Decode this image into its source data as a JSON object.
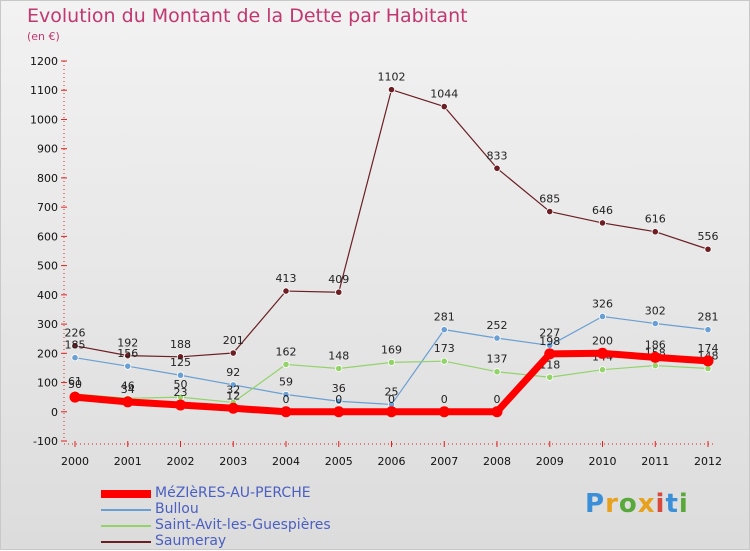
{
  "title": "Evolution du Montant de la Dette par Habitant",
  "subtitle": "(en €)",
  "brand": {
    "letters": [
      "P",
      "r",
      "o",
      "x",
      "i",
      "t",
      "i"
    ],
    "colors": [
      "#3b8fd9",
      "#e8a11c",
      "#59a83a",
      "#e8a11c",
      "#d9493b",
      "#3b8fd9",
      "#59a83a"
    ]
  },
  "chart_data": {
    "type": "line",
    "x": [
      2000,
      2001,
      2002,
      2003,
      2004,
      2005,
      2006,
      2007,
      2008,
      2009,
      2010,
      2011,
      2012
    ],
    "ylim": [
      -100,
      1200
    ],
    "yticks": [
      -100,
      0,
      100,
      200,
      300,
      400,
      500,
      600,
      700,
      800,
      900,
      1000,
      1100,
      1200
    ],
    "grid": false,
    "legend_position": "bottom-left",
    "series": [
      {
        "name": "Saumeray",
        "color": "#6b1f24",
        "width": 1.2,
        "values": [
          226,
          192,
          188,
          201,
          413,
          409,
          1102,
          1044,
          833,
          685,
          646,
          616,
          556
        ]
      },
      {
        "name": "Bullou",
        "color": "#6a9fd3",
        "width": 1.2,
        "values": [
          185,
          156,
          125,
          92,
          59,
          36,
          25,
          281,
          252,
          227,
          326,
          302,
          281
        ]
      },
      {
        "name": "Saint-Avit-les-Guespières",
        "color": "#93d36a",
        "width": 1.2,
        "values": [
          61,
          46,
          50,
          32,
          162,
          148,
          169,
          173,
          137,
          118,
          144,
          158,
          148
        ]
      },
      {
        "name": "MéZIèRES-AU-PERCHE",
        "color": "#ff0000",
        "width": 7,
        "values": [
          50,
          34,
          23,
          12,
          0,
          0,
          0,
          0,
          0,
          198,
          200,
          186,
          174
        ]
      }
    ],
    "legend_order": [
      "MéZIèRES-AU-PERCHE",
      "Bullou",
      "Saint-Avit-les-Guespières",
      "Saumeray"
    ]
  }
}
